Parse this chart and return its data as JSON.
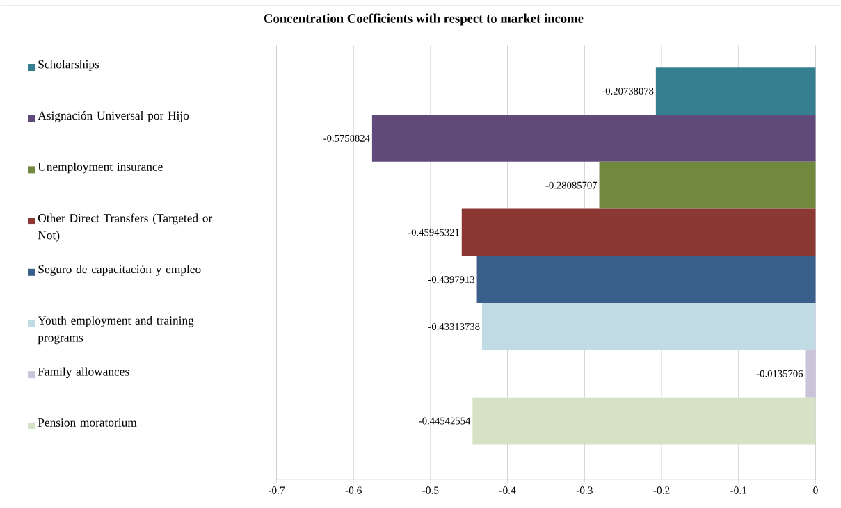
{
  "chart_data": {
    "type": "bar",
    "orientation": "horizontal",
    "title": "Concentration Coefficients with respect to market income",
    "categories": [
      null
    ],
    "series": [
      {
        "name": "Scholarships",
        "color": "#357f91",
        "values": [
          -0.20738078
        ]
      },
      {
        "name": "Asignación Universal por Hijo",
        "color": "#5f4a7a",
        "values": [
          -0.5758824
        ]
      },
      {
        "name": "Unemployment insurance",
        "color": "#71893e",
        "values": [
          -0.28085707
        ]
      },
      {
        "name": "Other Direct Transfers (Targeted or Not)",
        "color": "#8b3835",
        "values": [
          -0.45945321
        ]
      },
      {
        "name": "Seguro de capacitación y empleo",
        "color": "#3a5f8b",
        "values": [
          -0.4397913
        ]
      },
      {
        "name": "Youth employment and training programs",
        "color": "#c1dbe4",
        "values": [
          -0.43313738
        ]
      },
      {
        "name": "Family allowances",
        "color": "#cbc3d8",
        "values": [
          -0.0135706
        ]
      },
      {
        "name": "Pension moratorium",
        "color": "#d6e2c6",
        "values": [
          -0.44542554
        ]
      }
    ],
    "xlim": [
      -0.7,
      0
    ],
    "xticks": [
      -0.7,
      -0.6,
      -0.5,
      -0.4,
      -0.3,
      -0.2,
      -0.1,
      0
    ],
    "grid": "x",
    "legend": "left",
    "data_labels": true
  }
}
